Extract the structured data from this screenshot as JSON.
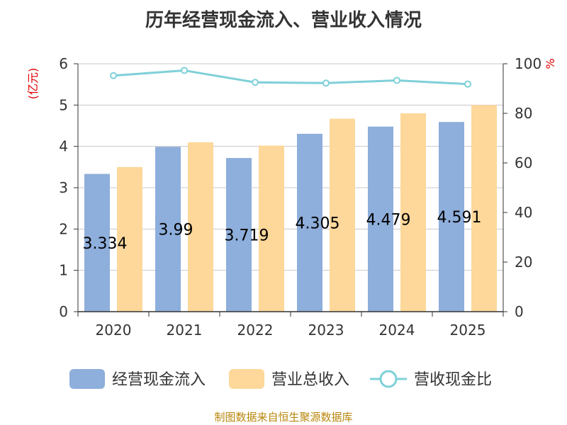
{
  "chart_data": {
    "type": "bar",
    "title": "历年经营现金流入、营业收入情况",
    "categories": [
      "2020",
      "2021",
      "2022",
      "2023",
      "2024",
      "2025"
    ],
    "y_left": {
      "label": "(亿元)",
      "ticks": [
        "0",
        "1",
        "2",
        "3",
        "4",
        "5",
        "6"
      ],
      "ylim": [
        0,
        6
      ]
    },
    "y_right": {
      "label": "%",
      "ticks": [
        "0",
        "20",
        "40",
        "60",
        "80",
        "100"
      ],
      "ylim": [
        0,
        100
      ]
    },
    "series": [
      {
        "name": "经营现金流入",
        "type": "bar",
        "color": "#8eaedb",
        "values": [
          3.334,
          3.99,
          3.719,
          4.305,
          4.479,
          4.591
        ],
        "labels": [
          "3.334",
          "3.99",
          "3.719",
          "4.305",
          "4.479",
          "4.591"
        ]
      },
      {
        "name": "营业总收入",
        "type": "bar",
        "color": "#fdd89a",
        "values": [
          3.5,
          4.1,
          4.02,
          4.67,
          4.8,
          5.0
        ]
      },
      {
        "name": "营收现金比",
        "type": "line",
        "axis": "right",
        "color": "#7fd0d8",
        "values": [
          95.2,
          97.3,
          92.5,
          92.2,
          93.3,
          91.8
        ]
      }
    ],
    "grid": true,
    "legend_position": "bottom"
  },
  "footer": {
    "source": "制图数据来自恒生聚源数据库"
  }
}
